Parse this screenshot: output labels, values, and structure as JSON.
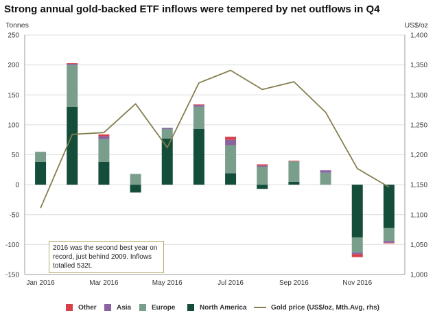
{
  "chart_data": {
    "type": "bar",
    "title": "Strong annual gold-backed ETF inflows were tempered by net outflows in Q4",
    "ylabel_left": "Tonnes",
    "ylabel_right": "US$/oz",
    "ylim_left": [
      -150,
      250
    ],
    "ylim_right": [
      1000,
      1400
    ],
    "yticks_left": [
      "250",
      "200",
      "150",
      "100",
      "50",
      "0",
      "-50",
      "-100",
      "-150"
    ],
    "yticks_right": [
      "1,400",
      "1,350",
      "1,300",
      "1,250",
      "1,200",
      "1,150",
      "1,100",
      "1,050",
      "1,000"
    ],
    "categories": [
      "Jan 2016",
      "Feb 2016",
      "Mar 2016",
      "Apr 2016",
      "May 2016",
      "Jun 2016",
      "Jul 2016",
      "Aug 2016",
      "Sep 2016",
      "Oct 2016",
      "Nov 2016",
      "Dec 2016"
    ],
    "xtick_labels": [
      "Jan 2016",
      "Mar 2016",
      "May 2016",
      "Jul 2016",
      "Sep 2016",
      "Nov 2016"
    ],
    "series": [
      {
        "name": "North America",
        "color": "#144d3a",
        "values": [
          38,
          130,
          38,
          -13,
          77,
          93,
          19,
          -7,
          5,
          0,
          -88,
          -72
        ]
      },
      {
        "name": "Europe",
        "color": "#7a9e8c",
        "values": [
          17,
          70,
          38,
          18,
          16,
          37,
          47,
          30,
          34,
          20,
          -25,
          -22
        ]
      },
      {
        "name": "Asia",
        "color": "#8a64a0",
        "values": [
          0,
          2,
          5,
          0,
          2,
          3,
          9,
          2,
          0,
          4,
          -3,
          -3
        ]
      },
      {
        "name": "Other",
        "color": "#d6404a",
        "values": [
          0,
          1,
          3,
          0,
          0,
          1,
          5,
          2,
          1,
          0,
          -5,
          -1
        ]
      }
    ],
    "line_series": {
      "name": "Gold price (US$/oz, Mth.Avg, rhs)",
      "color": "#857e4e",
      "axis": "right",
      "values": [
        1111,
        1234,
        1237,
        1285,
        1212,
        1320,
        1341,
        1309,
        1322,
        1271,
        1177,
        1146
      ]
    },
    "annotation": "2016 was the second best year on record, just behind 2009. Inflows totalled 532t.",
    "grid": true,
    "legend_position": "bottom"
  },
  "legend": [
    {
      "label": "Other",
      "color": "#d6404a",
      "kind": "bar"
    },
    {
      "label": "Asia",
      "color": "#8a64a0",
      "kind": "bar"
    },
    {
      "label": "Europe",
      "color": "#7a9e8c",
      "kind": "bar"
    },
    {
      "label": "North America",
      "color": "#144d3a",
      "kind": "bar"
    },
    {
      "label": "Gold price (US$/oz, Mth.Avg, rhs)",
      "color": "#857e4e",
      "kind": "line"
    }
  ]
}
